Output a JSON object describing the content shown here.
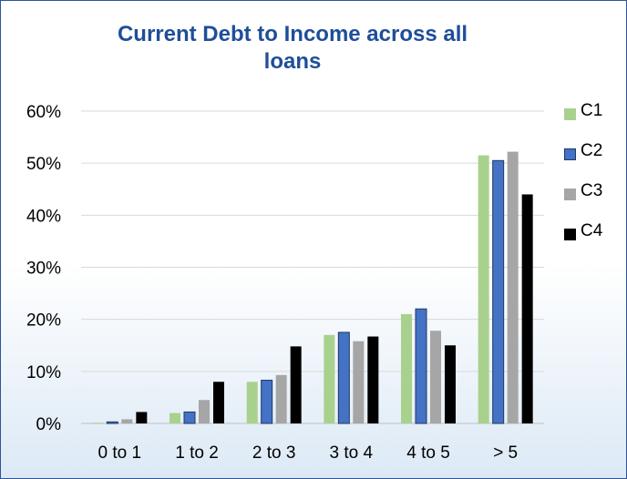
{
  "chart_data": {
    "type": "bar",
    "title": "Current Debt to Income across all loans",
    "categories": [
      "0 to 1",
      "1 to 2",
      "2 to 3",
      "3 to 4",
      "4 to 5",
      "> 5"
    ],
    "series": [
      {
        "name": "C1",
        "color": "#a9d18e",
        "values": [
          0.0,
          2.0,
          8.0,
          17.0,
          21.0,
          51.5
        ]
      },
      {
        "name": "C2",
        "color": "#4472c4",
        "values": [
          0.3,
          2.2,
          8.3,
          17.5,
          22.0,
          50.5
        ]
      },
      {
        "name": "C3",
        "color": "#a6a6a6",
        "values": [
          0.8,
          4.5,
          9.3,
          15.8,
          17.8,
          52.2
        ]
      },
      {
        "name": "C4",
        "color": "#000000",
        "values": [
          2.2,
          8.0,
          14.8,
          16.7,
          15.0,
          44.0
        ]
      }
    ],
    "ylim": [
      0,
      60
    ],
    "yticks": [
      "0%",
      "10%",
      "20%",
      "30%",
      "40%",
      "50%",
      "60%"
    ],
    "ytick_values": [
      0,
      10,
      20,
      30,
      40,
      50,
      60
    ],
    "grid": true,
    "legend": "right"
  }
}
